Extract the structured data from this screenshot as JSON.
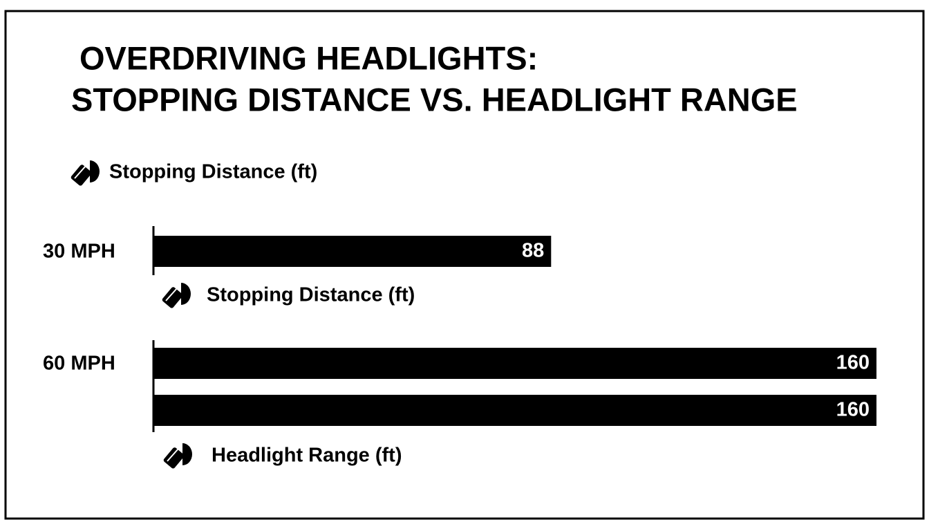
{
  "chart_data": {
    "type": "bar",
    "orientation": "horizontal",
    "title": "OVERDRIVING HEADLIGHTS:",
    "subtitle": "STOPPING DISTANCE VS. HEADLIGHT RANGE",
    "categories": [
      "30 MPH",
      "60 MPH"
    ],
    "series": [
      {
        "name": "Stopping Distance (ft)",
        "color": "#000000",
        "values": [
          88,
          160
        ]
      },
      {
        "name": "Headlight Range (ft)",
        "color": "#000000",
        "values": [
          null,
          160
        ]
      }
    ],
    "annotations": [
      "Stopping Distance (ft)"
    ]
  }
}
